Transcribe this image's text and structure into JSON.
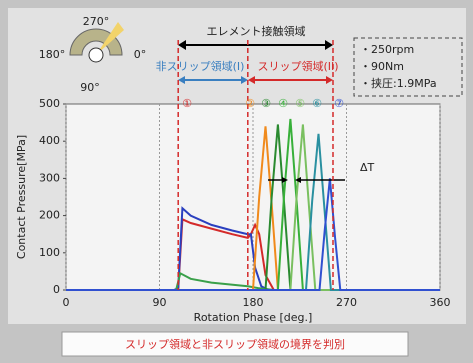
{
  "chart_data": {
    "type": "line",
    "x_label": "Rotation Phase [deg.]",
    "y_label": "Contact Pressure[MPa]",
    "xlim": [
      0,
      360
    ],
    "xticks": [
      0,
      90,
      180,
      270,
      360
    ],
    "ylim": [
      0,
      500
    ],
    "yticks": [
      0,
      100,
      200,
      300,
      400,
      500
    ],
    "grid": true,
    "boundaries": [
      108,
      175,
      257
    ],
    "series": [
      {
        "color": "#d42a2a",
        "x": [
          0,
          104,
          108,
          112,
          120,
          140,
          160,
          175,
          178,
          182,
          186,
          192,
          200,
          260,
          360
        ],
        "values": [
          0,
          0,
          0,
          190,
          180,
          165,
          150,
          140,
          150,
          175,
          150,
          40,
          0,
          0,
          0
        ]
      },
      {
        "color": "#2a3fbf",
        "x": [
          0,
          104,
          108,
          112,
          120,
          140,
          160,
          175,
          178,
          182,
          188,
          195,
          360
        ],
        "values": [
          0,
          0,
          5,
          220,
          200,
          175,
          160,
          150,
          150,
          60,
          10,
          0,
          0
        ]
      },
      {
        "color": "#3aa04a",
        "x": [
          0,
          106,
          110,
          120,
          140,
          175,
          185,
          200,
          360
        ],
        "values": [
          0,
          0,
          45,
          30,
          20,
          10,
          5,
          0,
          0
        ]
      },
      {
        "color": "#f08a1c",
        "x": [
          0,
          180,
          186,
          192,
          198,
          204,
          360
        ],
        "values": [
          0,
          0,
          250,
          440,
          230,
          0,
          0
        ]
      },
      {
        "color": "#2a8a30",
        "x": [
          0,
          192,
          198,
          204,
          210,
          216,
          360
        ],
        "values": [
          0,
          0,
          250,
          445,
          230,
          0,
          0
        ]
      },
      {
        "color": "#38b03a",
        "x": [
          0,
          204,
          210,
          216,
          222,
          228,
          360
        ],
        "values": [
          0,
          0,
          260,
          460,
          240,
          0,
          0
        ]
      },
      {
        "color": "#7ac060",
        "x": [
          0,
          216,
          222,
          228,
          234,
          240,
          360
        ],
        "values": [
          0,
          0,
          250,
          445,
          220,
          0,
          0
        ]
      },
      {
        "color": "#2a90a0",
        "x": [
          0,
          231,
          237,
          243,
          249,
          255,
          360
        ],
        "values": [
          0,
          0,
          240,
          420,
          210,
          0,
          0
        ]
      },
      {
        "color": "#3050d0",
        "x": [
          0,
          244,
          249,
          254,
          259,
          264,
          360
        ],
        "values": [
          0,
          0,
          160,
          300,
          140,
          0,
          0
        ]
      }
    ],
    "annotations": {
      "contact_region": "エレメント接触領域",
      "non_slip_region": "非スリップ領域(I)",
      "slip_region": "スリップ領域(II)",
      "conditions": [
        "・250rpm",
        "・90Nm",
        "・挟圧:1.9MPa"
      ],
      "delta_t": "ΔT",
      "markers": [
        {
          "label": "①",
          "color": "#d42a2a"
        },
        {
          "label": "②",
          "color": "#f08a1c"
        },
        {
          "label": "③",
          "color": "#2a8a30"
        },
        {
          "label": "④",
          "color": "#38b03a"
        },
        {
          "label": "⑤",
          "color": "#7ac060"
        },
        {
          "label": "⑥",
          "color": "#2a90a0"
        },
        {
          "label": "⑦",
          "color": "#3050d0"
        }
      ]
    }
  },
  "inset": {
    "labels": [
      "270°",
      "180°",
      "0°",
      "90°"
    ]
  },
  "footer": "スリップ領域と非スリップ領域の境界を判別"
}
